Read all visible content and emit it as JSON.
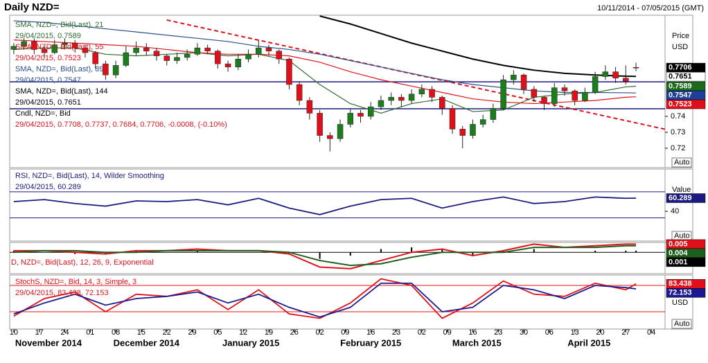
{
  "header": {
    "title": "Daily NZD=",
    "range": "10/11/2014 - 07/05/2015 (GMT)"
  },
  "chart_data": [
    {
      "type": "candlestick",
      "xlim": [
        -0.8,
        127.7
      ],
      "ylim": [
        0.7078,
        0.8035
      ],
      "yticks": [
        0.72,
        0.73,
        0.74
      ],
      "axis_title": [
        "Price",
        "USD"
      ],
      "button": "Auto",
      "colors": {
        "up": "#1c7d1c",
        "down": "#e0101a"
      },
      "x": [
        0,
        2,
        4,
        6,
        8,
        10,
        12,
        14,
        16,
        18,
        20,
        22,
        24,
        26,
        28,
        30,
        32,
        34,
        36,
        38,
        40,
        42,
        44,
        46,
        48,
        50,
        52,
        54,
        56,
        58,
        60,
        62,
        64,
        66,
        68,
        70,
        72,
        74,
        76,
        78,
        80,
        82,
        84,
        86,
        88,
        90,
        92,
        94,
        96,
        98,
        100,
        102,
        104,
        106,
        108,
        110,
        112,
        114,
        116,
        118,
        120,
        122
      ],
      "candles": [
        [
          0.782,
          0.786,
          0.779,
          0.784
        ],
        [
          0.784,
          0.789,
          0.782,
          0.787
        ],
        [
          0.787,
          0.789,
          0.779,
          0.782
        ],
        [
          0.782,
          0.784,
          0.777,
          0.78
        ],
        [
          0.78,
          0.788,
          0.779,
          0.785
        ],
        [
          0.785,
          0.789,
          0.782,
          0.786
        ],
        [
          0.786,
          0.788,
          0.78,
          0.783
        ],
        [
          0.783,
          0.785,
          0.777,
          0.78
        ],
        [
          0.78,
          0.781,
          0.77,
          0.773
        ],
        [
          0.773,
          0.775,
          0.763,
          0.766
        ],
        [
          0.766,
          0.775,
          0.764,
          0.772
        ],
        [
          0.772,
          0.784,
          0.771,
          0.78
        ],
        [
          0.78,
          0.787,
          0.778,
          0.783
        ],
        [
          0.783,
          0.786,
          0.778,
          0.781
        ],
        [
          0.781,
          0.783,
          0.775,
          0.778
        ],
        [
          0.778,
          0.779,
          0.772,
          0.775
        ],
        [
          0.775,
          0.78,
          0.773,
          0.777
        ],
        [
          0.777,
          0.782,
          0.775,
          0.779
        ],
        [
          0.779,
          0.786,
          0.778,
          0.783
        ],
        [
          0.783,
          0.785,
          0.779,
          0.781
        ],
        [
          0.781,
          0.782,
          0.77,
          0.773
        ],
        [
          0.773,
          0.775,
          0.768,
          0.771
        ],
        [
          0.771,
          0.779,
          0.769,
          0.776
        ],
        [
          0.776,
          0.782,
          0.774,
          0.779
        ],
        [
          0.779,
          0.788,
          0.777,
          0.783
        ],
        [
          0.783,
          0.785,
          0.778,
          0.781
        ],
        [
          0.781,
          0.782,
          0.773,
          0.776
        ],
        [
          0.776,
          0.777,
          0.757,
          0.76
        ],
        [
          0.76,
          0.762,
          0.747,
          0.75
        ],
        [
          0.75,
          0.752,
          0.738,
          0.742
        ],
        [
          0.742,
          0.744,
          0.724,
          0.728
        ],
        [
          0.728,
          0.73,
          0.718,
          0.726
        ],
        [
          0.726,
          0.738,
          0.724,
          0.735
        ],
        [
          0.735,
          0.745,
          0.733,
          0.742
        ],
        [
          0.742,
          0.744,
          0.736,
          0.74
        ],
        [
          0.74,
          0.749,
          0.738,
          0.746
        ],
        [
          0.746,
          0.753,
          0.744,
          0.75
        ],
        [
          0.75,
          0.755,
          0.747,
          0.752
        ],
        [
          0.752,
          0.754,
          0.746,
          0.75
        ],
        [
          0.75,
          0.757,
          0.748,
          0.754
        ],
        [
          0.754,
          0.76,
          0.752,
          0.757
        ],
        [
          0.757,
          0.759,
          0.749,
          0.752
        ],
        [
          0.752,
          0.753,
          0.741,
          0.745
        ],
        [
          0.745,
          0.747,
          0.729,
          0.732
        ],
        [
          0.732,
          0.734,
          0.72,
          0.728
        ],
        [
          0.728,
          0.738,
          0.726,
          0.735
        ],
        [
          0.735,
          0.741,
          0.733,
          0.738
        ],
        [
          0.738,
          0.748,
          0.736,
          0.745
        ],
        [
          0.745,
          0.766,
          0.744,
          0.763
        ],
        [
          0.763,
          0.769,
          0.76,
          0.766
        ],
        [
          0.766,
          0.767,
          0.754,
          0.757
        ],
        [
          0.757,
          0.759,
          0.749,
          0.752
        ],
        [
          0.752,
          0.753,
          0.744,
          0.748
        ],
        [
          0.748,
          0.761,
          0.746,
          0.758
        ],
        [
          0.758,
          0.76,
          0.753,
          0.756
        ],
        [
          0.756,
          0.757,
          0.747,
          0.75
        ],
        [
          0.75,
          0.758,
          0.749,
          0.755
        ],
        [
          0.755,
          0.768,
          0.754,
          0.765
        ],
        [
          0.765,
          0.772,
          0.763,
          0.768
        ],
        [
          0.768,
          0.771,
          0.761,
          0.764
        ],
        [
          0.764,
          0.772,
          0.76,
          0.762
        ],
        [
          0.7708,
          0.7737,
          0.7684,
          0.7706
        ]
      ],
      "series": [
        {
          "name": "SMA, NZD=, Bid(Last), 21",
          "label": "29/04/2015, 0.7589",
          "color": "#2e6b2e",
          "x": [
            0,
            6,
            12,
            18,
            24,
            30,
            36,
            42,
            48,
            54,
            60,
            66,
            72,
            78,
            84,
            90,
            96,
            102,
            108,
            114,
            120,
            122
          ],
          "values": [
            0.782,
            0.783,
            0.783,
            0.779,
            0.778,
            0.779,
            0.78,
            0.778,
            0.779,
            0.775,
            0.76,
            0.748,
            0.742,
            0.748,
            0.751,
            0.743,
            0.744,
            0.752,
            0.754,
            0.755,
            0.7585,
            0.7589
          ]
        },
        {
          "name": "SMA, NZD=, Bid(Last), 55",
          "label": "29/04/2015, 0.7523",
          "color": "#e0101a",
          "x": [
            0,
            6,
            12,
            18,
            24,
            30,
            36,
            42,
            48,
            54,
            60,
            66,
            72,
            78,
            84,
            90,
            96,
            102,
            108,
            114,
            120,
            122
          ],
          "values": [
            0.788,
            0.787,
            0.786,
            0.785,
            0.784,
            0.782,
            0.78,
            0.779,
            0.779,
            0.778,
            0.774,
            0.768,
            0.763,
            0.759,
            0.755,
            0.751,
            0.749,
            0.748,
            0.749,
            0.75,
            0.752,
            0.7523
          ]
        },
        {
          "name": "SMA, NZD=, Bid(Last), 89",
          "label": "29/04/2015, 0.7547",
          "color": "#2a4f8f",
          "x": [
            0,
            6,
            12,
            18,
            24,
            30,
            36,
            42,
            48,
            54,
            60,
            66,
            72,
            78,
            84,
            90,
            96,
            102,
            108,
            114,
            120,
            122
          ],
          "values": [
            0.8,
            0.799,
            0.797,
            0.795,
            0.793,
            0.791,
            0.789,
            0.787,
            0.784,
            0.782,
            0.779,
            0.775,
            0.771,
            0.767,
            0.763,
            0.76,
            0.758,
            0.756,
            0.755,
            0.755,
            0.7548,
            0.7547
          ]
        },
        {
          "name": "SMA, NZD=, Bid(Last), 144",
          "label": "29/04/2015, 0.7651",
          "color": "#000000",
          "x": [
            60,
            66,
            72,
            78,
            84,
            90,
            96,
            102,
            108,
            114,
            120,
            122
          ],
          "values": [
            0.803,
            0.798,
            0.792,
            0.786,
            0.781,
            0.776,
            0.772,
            0.769,
            0.767,
            0.766,
            0.7652,
            0.7651
          ]
        }
      ],
      "candle_legend": {
        "name": "Cndl, NZD=, Bid",
        "label": "29/04/2015, 0.7708, 0.7737, 0.7684, 0.7706, -0.0008, (-0.10%)"
      },
      "hlines": [
        0.7617,
        0.7448
      ],
      "trendline": {
        "x": [
          30,
          131
        ],
        "values": [
          0.8005,
          0.7296
        ],
        "color": "#e0101a"
      },
      "last_values": [
        {
          "value": 0.7706,
          "color": "#000000"
        },
        {
          "value": 0.7651,
          "color": "#ffffff"
        },
        {
          "value": 0.7589,
          "color": "#1c6b1c"
        },
        {
          "value": 0.7547,
          "color": "#1f3f9a"
        },
        {
          "value": 0.7523,
          "color": "#e0101a"
        }
      ]
    },
    {
      "type": "line",
      "xlim": [
        -0.8,
        127.7
      ],
      "ylim": [
        -5.7,
        105
      ],
      "yticks": [
        40
      ],
      "bands": [
        70,
        30
      ],
      "axis_title": [
        "Value"
      ],
      "button": "Auto",
      "series": [
        {
          "name": "RSI, NZD=, Bid(Last), 14, Wilder Smoothing",
          "label": "29/04/2015, 60.289",
          "color": "#1a1a80",
          "x": [
            0,
            6,
            12,
            18,
            24,
            30,
            36,
            42,
            48,
            54,
            60,
            66,
            72,
            78,
            84,
            90,
            96,
            102,
            108,
            114,
            120,
            122
          ],
          "values": [
            55,
            58,
            52,
            48,
            56,
            55,
            58,
            50,
            60,
            45,
            35,
            48,
            58,
            60,
            45,
            55,
            62,
            52,
            55,
            62,
            60,
            60.289
          ]
        }
      ],
      "last_values": [
        {
          "value": 60.289,
          "color": "#1a1a80"
        }
      ]
    },
    {
      "type": "macd",
      "xlim": [
        -0.8,
        127.7
      ],
      "ylim": [
        -0.013,
        0.006
      ],
      "name": "D, NZD=, Bid(Last), 12, 26, 9, Exponential",
      "x": [
        0,
        6,
        12,
        18,
        24,
        30,
        36,
        42,
        48,
        54,
        60,
        66,
        72,
        78,
        84,
        90,
        96,
        102,
        108,
        114,
        120,
        122
      ],
      "histogram": [
        0.001,
        0,
        -0.001,
        -0.001,
        0.001,
        0,
        0.001,
        0,
        0,
        -0.001,
        -0.004,
        -0.002,
        0.002,
        0.003,
        0.002,
        -0.002,
        0.001,
        0.002,
        0,
        0.001,
        0.001,
        0.001
      ],
      "series": [
        {
          "color": "#e0101a",
          "values": [
            0.001,
            0.001,
            0,
            -0.001,
            0.001,
            0.001,
            0.002,
            0.001,
            0.001,
            -0.001,
            -0.009,
            -0.01,
            -0.005,
            0,
            0.002,
            -0.002,
            0.001,
            0.005,
            0.003,
            0.004,
            0.005,
            0.005
          ]
        },
        {
          "color": "#1c5e1c",
          "values": [
            0,
            0.001,
            0.001,
            0,
            0,
            0.001,
            0.001,
            0.001,
            0.001,
            0,
            -0.005,
            -0.008,
            -0.007,
            -0.003,
            0,
            0,
            0,
            0.003,
            0.003,
            0.003,
            0.004,
            0.004
          ]
        }
      ],
      "last_values": [
        {
          "value": 0.005,
          "color": "#e0101a"
        },
        {
          "value": 0.004,
          "color": "#1c5e1c"
        },
        {
          "value": 0.001,
          "color": "#000000"
        }
      ]
    },
    {
      "type": "line",
      "xlim": [
        -0.8,
        127.7
      ],
      "ylim": [
        -19.5,
        103.7
      ],
      "bands": [
        80,
        20
      ],
      "axis_title": [
        "USD"
      ],
      "button": "Auto",
      "series": [
        {
          "name": "StochS, NZD=, Bid, 14, 3, Simple, 3",
          "label": "29/04/2015, 83.438, 72.153",
          "color": "#e0101a",
          "x": [
            0,
            6,
            12,
            18,
            24,
            30,
            36,
            42,
            48,
            54,
            60,
            66,
            72,
            78,
            84,
            90,
            96,
            102,
            108,
            114,
            120,
            122
          ],
          "values": [
            10,
            50,
            65,
            20,
            60,
            55,
            70,
            25,
            70,
            15,
            5,
            40,
            95,
            80,
            5,
            40,
            90,
            60,
            55,
            85,
            70,
            83.438
          ]
        },
        {
          "color": "#1a1a90",
          "x": [
            0,
            6,
            12,
            18,
            24,
            30,
            36,
            42,
            48,
            54,
            60,
            66,
            72,
            78,
            84,
            90,
            96,
            102,
            108,
            114,
            120,
            122
          ],
          "values": [
            15,
            40,
            60,
            35,
            50,
            55,
            65,
            40,
            60,
            30,
            8,
            30,
            85,
            85,
            20,
            30,
            80,
            70,
            50,
            80,
            75,
            72.153
          ]
        }
      ],
      "last_values": [
        {
          "value": 83.438,
          "color": "#e0101a"
        },
        {
          "value": 72.153,
          "color": "#1a1a90"
        }
      ],
      "xticks": [
        {
          "value": 0,
          "label": "10"
        },
        {
          "value": 5,
          "label": "17"
        },
        {
          "value": 10,
          "label": "24"
        },
        {
          "value": 15,
          "label": "01"
        },
        {
          "value": 20,
          "label": "08"
        },
        {
          "value": 25,
          "label": "15"
        },
        {
          "value": 30,
          "label": "22"
        },
        {
          "value": 35,
          "label": "29"
        },
        {
          "value": 40,
          "label": "05"
        },
        {
          "value": 45,
          "label": "12"
        },
        {
          "value": 50,
          "label": "19"
        },
        {
          "value": 55,
          "label": "26"
        },
        {
          "value": 60,
          "label": "02"
        },
        {
          "value": 65,
          "label": "09"
        },
        {
          "value": 70,
          "label": "16"
        },
        {
          "value": 75,
          "label": "23"
        },
        {
          "value": 80,
          "label": "02"
        },
        {
          "value": 85,
          "label": "09"
        },
        {
          "value": 90,
          "label": "16"
        },
        {
          "value": 95,
          "label": "23"
        },
        {
          "value": 100,
          "label": "30"
        },
        {
          "value": 105,
          "label": "06"
        },
        {
          "value": 110,
          "label": "13"
        },
        {
          "value": 115,
          "label": "20"
        },
        {
          "value": 120,
          "label": "27"
        },
        {
          "value": 125,
          "label": "04"
        }
      ],
      "month_labels": [
        {
          "value": 6.8,
          "label": "November 2014"
        },
        {
          "value": 26,
          "label": "December 2014"
        },
        {
          "value": 46.5,
          "label": "January 2015"
        },
        {
          "value": 70,
          "label": "February 2015"
        },
        {
          "value": 90.8,
          "label": "March 2015"
        },
        {
          "value": 112.8,
          "label": "April 2015"
        }
      ]
    }
  ]
}
